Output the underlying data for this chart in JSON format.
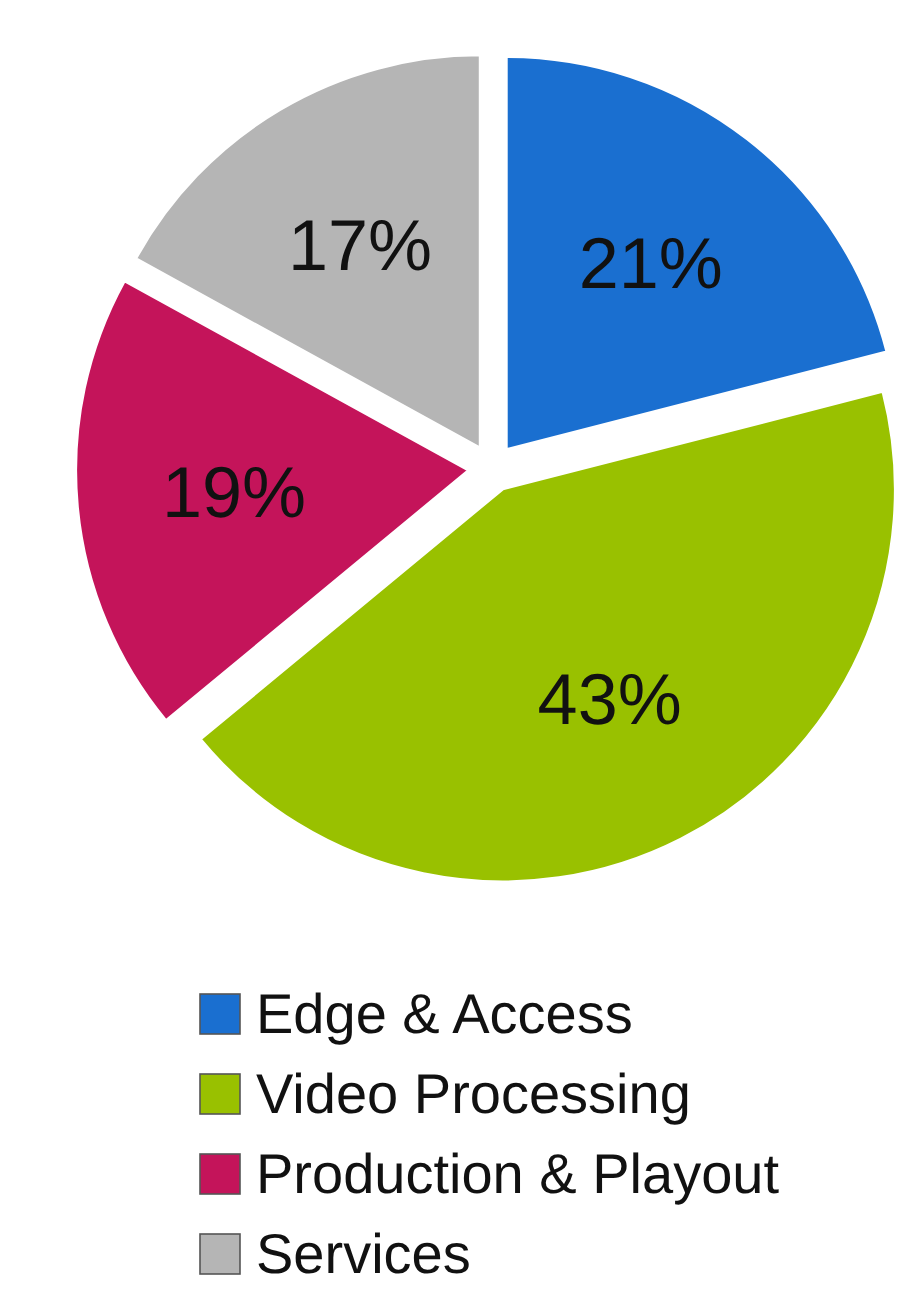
{
  "chart_data": {
    "type": "pie",
    "categories": [
      "Edge & Access",
      "Video Processing",
      "Production & Playout",
      "Services"
    ],
    "values": [
      21,
      43,
      19,
      17
    ],
    "colors": [
      "#1a6fd0",
      "#99c100",
      "#c4145a",
      "#b5b5b5"
    ],
    "value_labels": [
      "21%",
      "43%",
      "19%",
      "17%"
    ],
    "legend": "bottom"
  }
}
